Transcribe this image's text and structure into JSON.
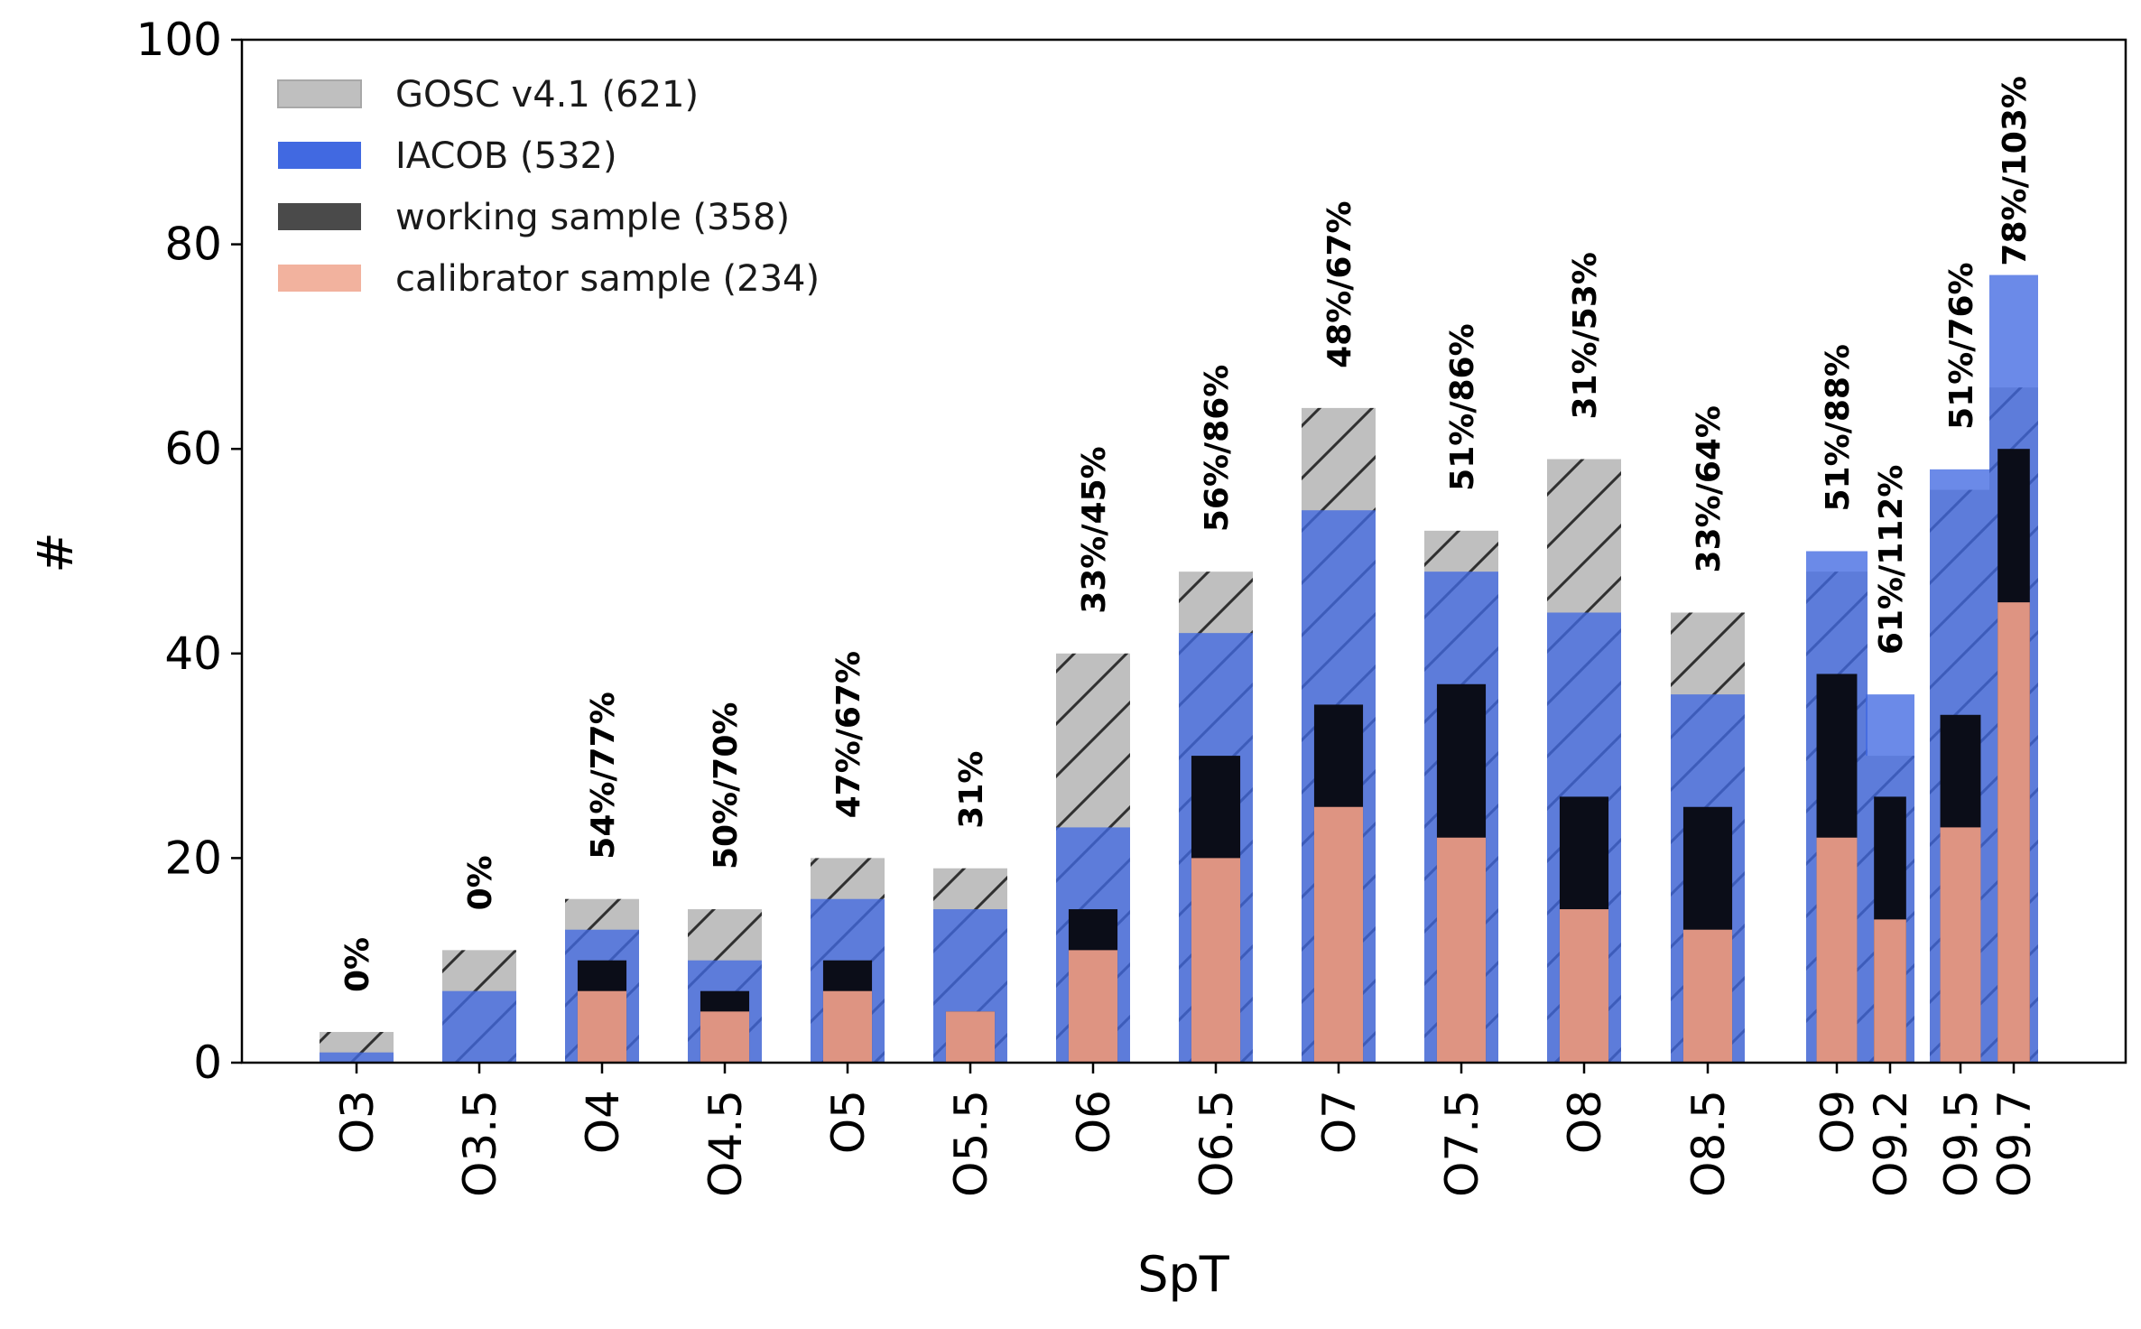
{
  "chart_data": {
    "type": "bar",
    "xlabel": "SpT",
    "ylabel": "#",
    "ylim": [
      0,
      100
    ],
    "yticks": [
      "0",
      "20",
      "40",
      "60",
      "80",
      "100"
    ],
    "legend_position": "top-left",
    "categories": [
      "O3",
      "O3.5",
      "O4",
      "O4.5",
      "O5",
      "O5.5",
      "O6",
      "O6.5",
      "O7",
      "O7.5",
      "O8",
      "O8.5",
      "O9",
      "O9.2",
      "O9.5",
      "O9.7"
    ],
    "series": [
      {
        "name": "GOSC v4.1 (621)",
        "color": "#bfbfbf",
        "values": [
          3,
          11,
          16,
          15,
          20,
          19,
          40,
          48,
          64,
          52,
          59,
          44,
          48,
          30,
          56,
          66
        ]
      },
      {
        "name": "IACOB (532)",
        "color": "#4169e1",
        "values": [
          1,
          7,
          13,
          10,
          16,
          15,
          23,
          42,
          54,
          48,
          44,
          36,
          50,
          36,
          58,
          77
        ]
      },
      {
        "name": "working sample (358)",
        "color": "#000000",
        "values": [
          0,
          0,
          10,
          7,
          10,
          5,
          15,
          30,
          35,
          37,
          26,
          25,
          38,
          26,
          34,
          60
        ]
      },
      {
        "name": "calibrator sample (234)",
        "color": "#f4a98c",
        "values": [
          0,
          0,
          7,
          5,
          7,
          5,
          11,
          20,
          25,
          22,
          15,
          13,
          22,
          14,
          23,
          45
        ]
      }
    ],
    "bar_labels": [
      "0%",
      "0%",
      "54%/77%",
      "50%/70%",
      "47%/67%",
      "31%",
      "33%/45%",
      "56%/86%",
      "48%/67%",
      "51%/86%",
      "31%/53%",
      "33%/64%",
      "51%/88%",
      "61%/112%",
      "51%/76%",
      "78%/103%"
    ]
  }
}
